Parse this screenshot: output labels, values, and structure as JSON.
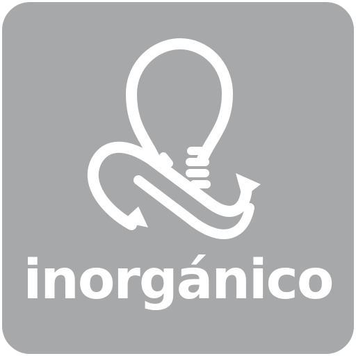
{
  "tile": {
    "label": "inorgánico",
    "background_color": "#a7a8aa",
    "foreground_color": "#ffffff"
  },
  "icon": {
    "name": "lightbulb-recycle-icon"
  }
}
